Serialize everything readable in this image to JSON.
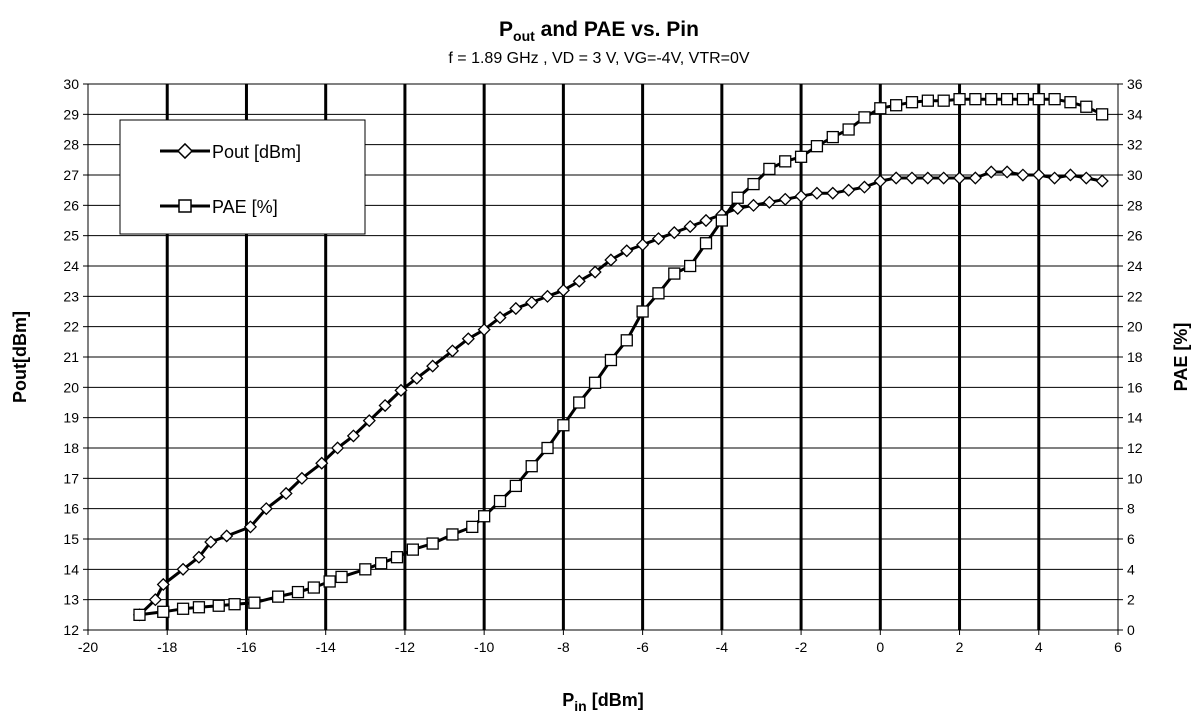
{
  "chart_data": {
    "type": "line",
    "title": {
      "main": "P",
      "sub": "out",
      "rest": " and PAE vs. Pin"
    },
    "subtitle": "f = 1.89 GHz , VD = 3 V, VG=-4V, VTR=0V",
    "xlabel": {
      "main": "P",
      "sub": "in",
      "rest": " [dBm]"
    },
    "ylabel_left": "Pout[dBm]",
    "ylabel_right": "PAE [%]",
    "xlim": [
      -20,
      6
    ],
    "ylim_left": [
      12,
      30
    ],
    "ylim_right": [
      0,
      36
    ],
    "x_ticks": [
      "-20",
      "-18",
      "-16",
      "-14",
      "-12",
      "-10",
      "-8",
      "-6",
      "-4",
      "-2",
      "0",
      "2",
      "4",
      "6"
    ],
    "y_left_ticks": [
      "12",
      "13",
      "14",
      "15",
      "16",
      "17",
      "18",
      "19",
      "20",
      "21",
      "22",
      "23",
      "24",
      "25",
      "26",
      "27",
      "28",
      "29",
      "30"
    ],
    "y_right_ticks": [
      "0",
      "2",
      "4",
      "6",
      "8",
      "10",
      "12",
      "14",
      "16",
      "18",
      "20",
      "22",
      "24",
      "26",
      "28",
      "30",
      "32",
      "34",
      "36"
    ],
    "grid": true,
    "legend_position": "top-left",
    "series": [
      {
        "name": "Pout [dBm]",
        "axis": "left",
        "marker": "diamond",
        "x": [
          -18.7,
          -18.3,
          -18.1,
          -17.6,
          -17.2,
          -16.9,
          -16.5,
          -15.9,
          -15.5,
          -15.0,
          -14.6,
          -14.1,
          -13.7,
          -13.3,
          -12.9,
          -12.5,
          -12.1,
          -11.7,
          -11.3,
          -10.8,
          -10.4,
          -10.0,
          -9.6,
          -9.2,
          -8.8,
          -8.4,
          -8.0,
          -7.6,
          -7.2,
          -6.8,
          -6.4,
          -6.0,
          -5.6,
          -5.2,
          -4.8,
          -4.4,
          -4.0,
          -3.6,
          -3.2,
          -2.8,
          -2.4,
          -2.0,
          -1.6,
          -1.2,
          -0.8,
          -0.4,
          0.0,
          0.4,
          0.8,
          1.2,
          1.6,
          2.0,
          2.4,
          2.8,
          3.2,
          3.6,
          4.0,
          4.4,
          4.8,
          5.2,
          5.6
        ],
        "y": [
          12.5,
          13.0,
          13.5,
          14.0,
          14.4,
          14.9,
          15.1,
          15.4,
          16.0,
          16.5,
          17.0,
          17.5,
          18.0,
          18.4,
          18.9,
          19.4,
          19.9,
          20.3,
          20.7,
          21.2,
          21.6,
          21.9,
          22.3,
          22.6,
          22.8,
          23.0,
          23.2,
          23.5,
          23.8,
          24.2,
          24.5,
          24.7,
          24.9,
          25.1,
          25.3,
          25.5,
          25.7,
          25.9,
          26.0,
          26.1,
          26.2,
          26.3,
          26.4,
          26.4,
          26.5,
          26.6,
          26.8,
          26.9,
          26.9,
          26.9,
          26.9,
          26.9,
          26.9,
          27.1,
          27.1,
          27.0,
          27.0,
          26.9,
          27.0,
          26.9,
          26.8
        ]
      },
      {
        "name": "PAE [%]",
        "axis": "right",
        "marker": "square",
        "x": [
          -18.7,
          -18.1,
          -17.6,
          -17.2,
          -16.7,
          -16.3,
          -15.8,
          -15.2,
          -14.7,
          -14.3,
          -13.9,
          -13.6,
          -13.0,
          -12.6,
          -12.2,
          -11.8,
          -11.3,
          -10.8,
          -10.3,
          -10.0,
          -9.6,
          -9.2,
          -8.8,
          -8.4,
          -8.0,
          -7.6,
          -7.2,
          -6.8,
          -6.4,
          -6.0,
          -5.6,
          -5.2,
          -4.8,
          -4.4,
          -4.0,
          -3.6,
          -3.2,
          -2.8,
          -2.4,
          -2.0,
          -1.6,
          -1.2,
          -0.8,
          -0.4,
          0.0,
          0.4,
          0.8,
          1.2,
          1.6,
          2.0,
          2.4,
          2.8,
          3.2,
          3.6,
          4.0,
          4.4,
          4.8,
          5.2,
          5.6
        ],
        "y": [
          1.0,
          1.2,
          1.4,
          1.5,
          1.6,
          1.7,
          1.8,
          2.2,
          2.5,
          2.8,
          3.2,
          3.5,
          4.0,
          4.4,
          4.8,
          5.3,
          5.7,
          6.3,
          6.8,
          7.5,
          8.5,
          9.5,
          10.8,
          12.0,
          13.5,
          15.0,
          16.3,
          17.8,
          19.1,
          21.0,
          22.2,
          23.5,
          24.0,
          25.5,
          27.0,
          28.5,
          29.4,
          30.4,
          30.9,
          31.2,
          31.9,
          32.5,
          33.0,
          33.8,
          34.4,
          34.6,
          34.8,
          34.9,
          34.9,
          35.0,
          35.0,
          35.0,
          35.0,
          35.0,
          35.0,
          35.0,
          34.8,
          34.5,
          34.0
        ]
      }
    ]
  }
}
